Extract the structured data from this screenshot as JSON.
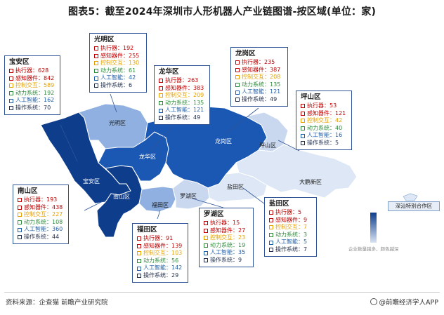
{
  "title": "图表5：截至2024年深圳市人形机器人产业链图谱-按区域(单位：家)",
  "categories": [
    "执行器",
    "感知器件",
    "控制交互",
    "动力系统",
    "人工智能",
    "操作系统"
  ],
  "districts": [
    {
      "name": "光明区",
      "values": [
        192,
        255,
        130,
        61,
        42,
        6
      ]
    },
    {
      "name": "宝安区",
      "values": [
        628,
        842,
        589,
        192,
        162,
        70
      ]
    },
    {
      "name": "龙华区",
      "values": [
        263,
        383,
        209,
        135,
        121,
        49
      ]
    },
    {
      "name": "龙岗区",
      "values": [
        235,
        387,
        208,
        135,
        121,
        49
      ]
    },
    {
      "name": "坪山区",
      "values": [
        53,
        121,
        42,
        40,
        16,
        5
      ]
    },
    {
      "name": "南山区",
      "values": [
        193,
        438,
        227,
        108,
        360,
        44
      ]
    },
    {
      "name": "福田区",
      "values": [
        91,
        139,
        103,
        56,
        142,
        29
      ]
    },
    {
      "name": "罗湖区",
      "values": [
        15,
        27,
        23,
        19,
        35,
        9
      ]
    },
    {
      "name": "盐田区",
      "values": [
        5,
        9,
        7,
        3,
        5,
        7
      ]
    }
  ],
  "map_labels": {
    "guangming": "光明区",
    "longhua": "龙华区",
    "longgang": "龙岗区",
    "pingshan": "坪山区",
    "baoan": "宝安区",
    "nanshan": "南山区",
    "futian": "福田区",
    "luohu": "罗湖区",
    "yantian": "盐田区",
    "dapeng": "大鹏新区"
  },
  "legend": {
    "sz_special": "深汕特别合作区",
    "note": "企业数量越多，颜色越深"
  },
  "footer": {
    "source": "资料来源：企查猫 前瞻产业研究院",
    "brand": "@前瞻经济学人APP"
  },
  "colors": {
    "dark": "#0e3d8c",
    "mid": "#3a6bc4",
    "light": "#8fb0e0",
    "pale": "#c9d8ef",
    "palest": "#dde7f5",
    "frame": "#2f5597"
  }
}
